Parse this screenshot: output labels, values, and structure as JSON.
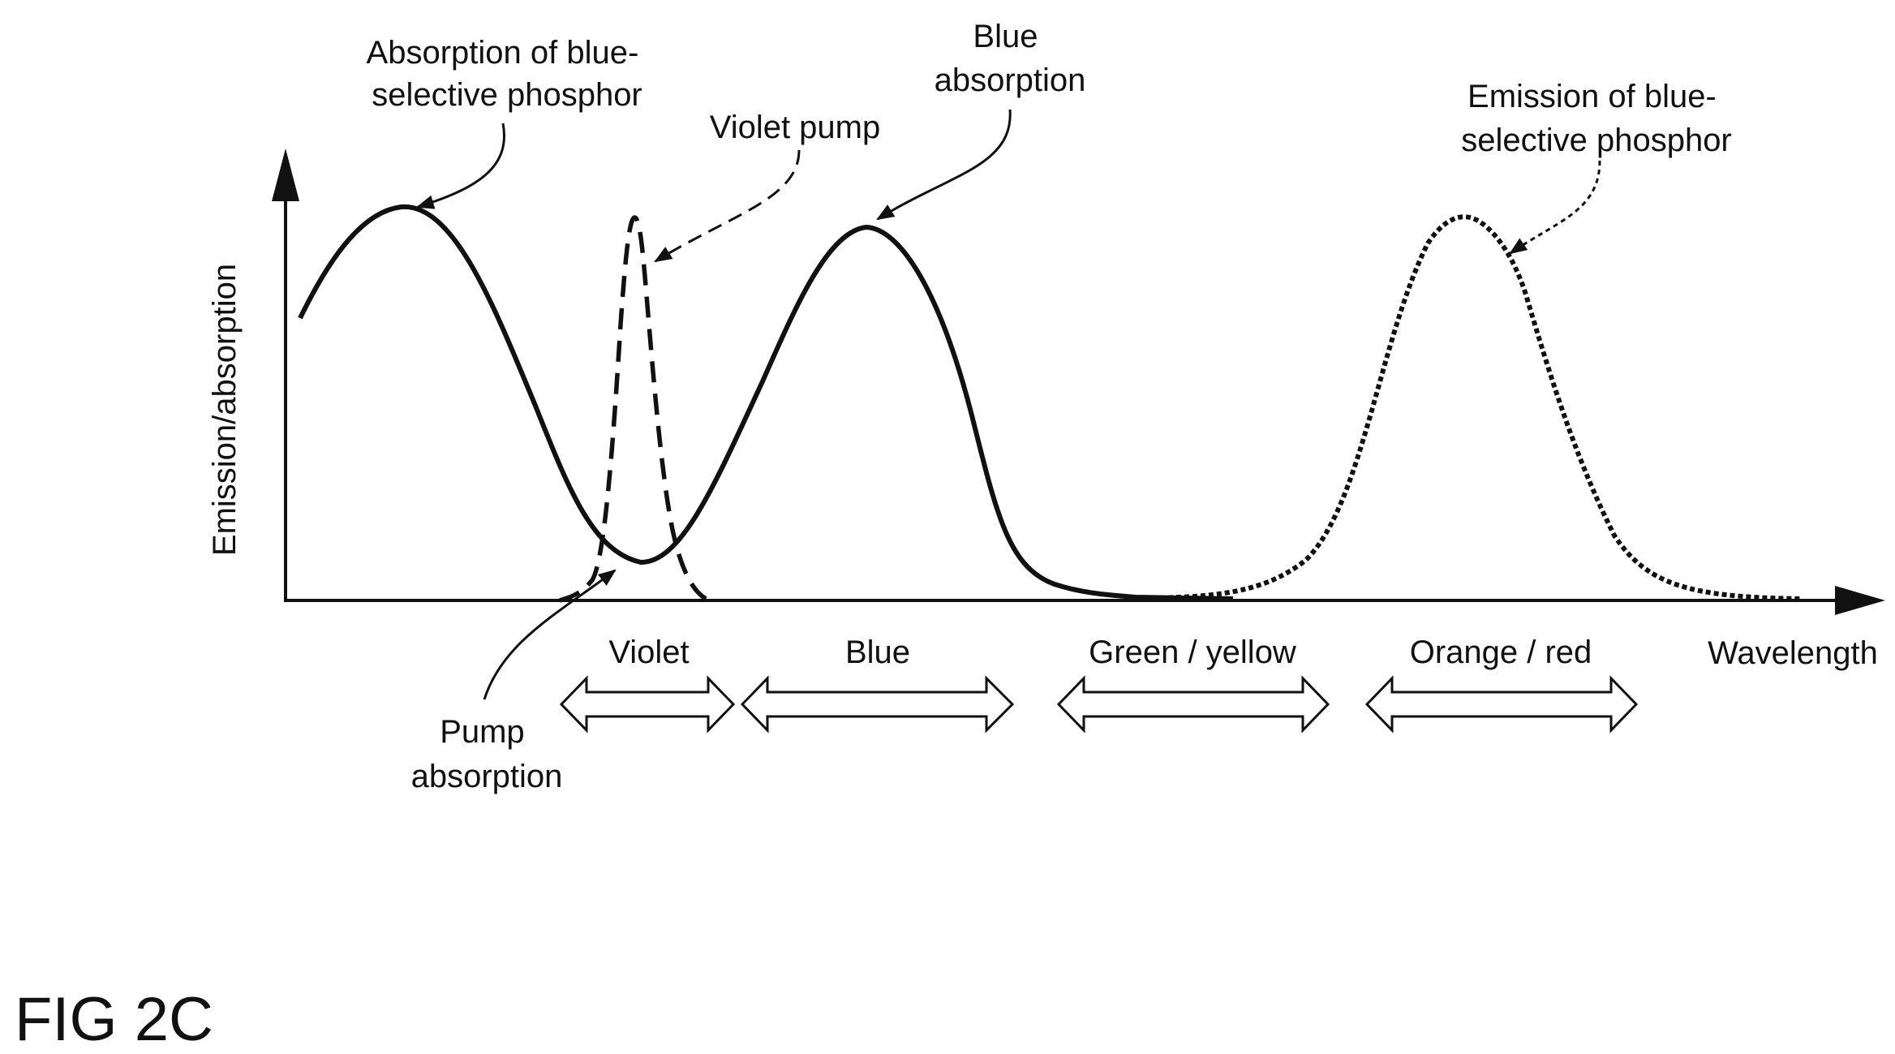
{
  "figure": {
    "label": "FIG 2C",
    "y_axis_label": "Emission/absorption",
    "x_axis_label": "Wavelength",
    "annotations": {
      "absorption_blue_selective": [
        "Absorption of blue-",
        "selective phosphor"
      ],
      "violet_pump": [
        "Violet pump"
      ],
      "blue_absorption": [
        "Blue",
        "absorption"
      ],
      "emission_blue_selective": [
        "Emission of blue-",
        "selective phosphor"
      ],
      "pump_absorption": [
        "Pump",
        "absorption"
      ]
    },
    "bands": [
      "Violet",
      "Blue",
      "Green / yellow",
      "Orange / red"
    ],
    "line_color": "#111111"
  }
}
